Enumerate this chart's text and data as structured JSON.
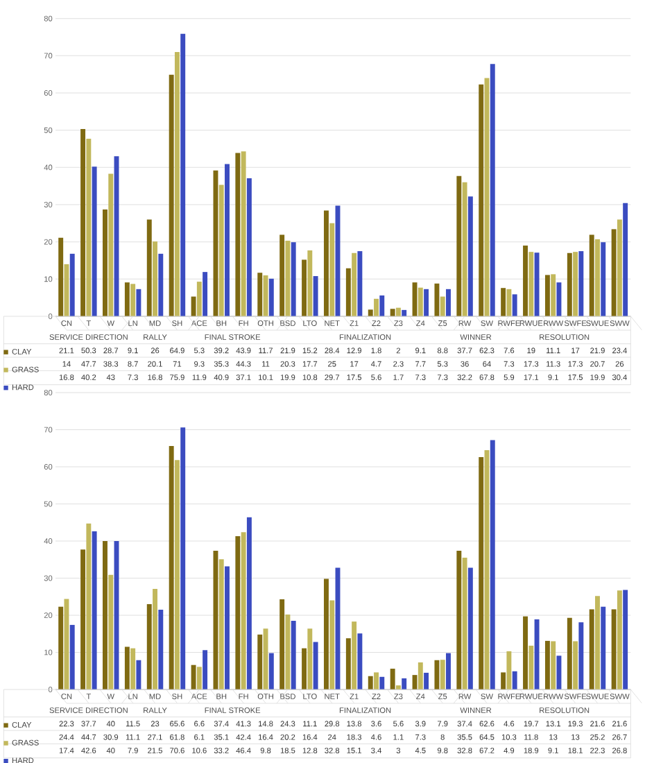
{
  "chart_data": [
    {
      "type": "bar",
      "categories": [
        "CN",
        "T",
        "W",
        "LN",
        "MD",
        "SH",
        "ACE",
        "BH",
        "FH",
        "OTH",
        "BSD",
        "LTO",
        "NET",
        "Z1",
        "Z2",
        "Z3",
        "Z4",
        "Z5",
        "RW",
        "SW",
        "RWFE",
        "RWUE",
        "RWW",
        "SWFE",
        "SWUE",
        "SWW"
      ],
      "series": [
        {
          "name": "CLAY",
          "color": "#7f6a12",
          "values": [
            21.1,
            50.3,
            28.7,
            9.1,
            26,
            64.9,
            5.3,
            39.2,
            43.9,
            11.7,
            21.9,
            15.2,
            28.4,
            12.9,
            1.8,
            2,
            9.1,
            8.8,
            37.7,
            62.3,
            7.6,
            19,
            11.1,
            17,
            21.9,
            23.4
          ]
        },
        {
          "name": "GRASS",
          "color": "#c2b85c",
          "values": [
            14,
            47.7,
            38.3,
            8.7,
            20.1,
            71,
            9.3,
            35.3,
            44.3,
            11,
            20.3,
            17.7,
            25,
            17,
            4.7,
            2.3,
            7.7,
            5.3,
            36,
            64,
            7.3,
            17.3,
            11.3,
            17.3,
            20.7,
            26
          ]
        },
        {
          "name": "HARD",
          "color": "#3b4cc0",
          "values": [
            16.8,
            40.2,
            43,
            7.3,
            16.8,
            75.9,
            11.9,
            40.9,
            37.1,
            10.1,
            19.9,
            10.8,
            29.7,
            17.5,
            5.6,
            1.7,
            7.3,
            7.3,
            32.2,
            67.8,
            5.9,
            17.1,
            9.1,
            17.5,
            19.9,
            30.4
          ]
        }
      ],
      "ylim": [
        0,
        80
      ],
      "yticks": [
        0,
        10,
        20,
        30,
        40,
        50,
        60,
        70,
        80
      ],
      "grid": "y",
      "data_labels": true,
      "legend": "bottom",
      "annotations": [
        "SERVICE DIRECTION",
        "RALLY",
        "FINAL STROKE",
        "FINALIZATION",
        "WINNER",
        "RESOLUTION"
      ]
    },
    {
      "type": "bar",
      "categories": [
        "CN",
        "T",
        "W",
        "LN",
        "MD",
        "SH",
        "ACE",
        "BH",
        "FH",
        "OTH",
        "BSD",
        "LTO",
        "NET",
        "Z1",
        "Z2",
        "Z3",
        "Z4",
        "Z5",
        "RW",
        "SW",
        "RWFE",
        "RWUE",
        "RWW",
        "SWFE",
        "SWUE",
        "SWW"
      ],
      "series": [
        {
          "name": "CLAY",
          "color": "#7f6a12",
          "values": [
            22.3,
            37.7,
            40,
            11.5,
            23,
            65.6,
            6.6,
            37.4,
            41.3,
            14.8,
            24.3,
            11.1,
            29.8,
            13.8,
            3.6,
            5.6,
            3.9,
            7.9,
            37.4,
            62.6,
            4.6,
            19.7,
            13.1,
            19.3,
            21.6,
            21.6
          ]
        },
        {
          "name": "GRASS",
          "color": "#c2b85c",
          "values": [
            24.4,
            44.7,
            30.9,
            11.1,
            27.1,
            61.8,
            6.1,
            35.1,
            42.4,
            16.4,
            20.2,
            16.4,
            24,
            18.3,
            4.6,
            1.1,
            7.3,
            8,
            35.5,
            64.5,
            10.3,
            11.8,
            13,
            13,
            25.2,
            26.7
          ]
        },
        {
          "name": "HARD",
          "color": "#3b4cc0",
          "values": [
            17.4,
            42.6,
            40,
            7.9,
            21.5,
            70.6,
            10.6,
            33.2,
            46.4,
            9.8,
            18.5,
            12.8,
            32.8,
            15.1,
            3.4,
            3,
            4.5,
            9.8,
            32.8,
            67.2,
            4.9,
            18.9,
            9.1,
            18.1,
            22.3,
            26.8
          ]
        }
      ],
      "ylim": [
        0,
        80
      ],
      "yticks": [
        0,
        10,
        20,
        30,
        40,
        50,
        60,
        70,
        80
      ],
      "grid": "y",
      "data_labels": true,
      "legend": "bottom",
      "annotations": [
        "SERVICE DIRECTION",
        "RALLY",
        "FINAL STROKE",
        "FINALIZATION",
        "WINNER",
        "RESOLUTION"
      ]
    }
  ]
}
